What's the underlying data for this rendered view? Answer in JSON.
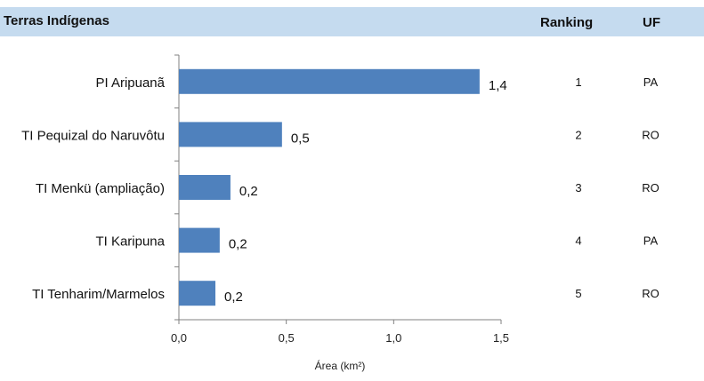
{
  "header": {
    "title": "Terras Indígenas",
    "ranking_label": "Ranking",
    "uf_label": "UF"
  },
  "chart_data": {
    "type": "bar",
    "orientation": "horizontal",
    "categories": [
      "PI Aripuanã",
      "TI Pequizal do Naruvôtu",
      "TI Menkü (ampliação)",
      "TI Karipuna",
      "TI Tenharim/Marmelos"
    ],
    "values": [
      1.4,
      0.48,
      0.24,
      0.19,
      0.17
    ],
    "value_labels": [
      "1,4",
      "0,5",
      "0,2",
      "0,2",
      "0,2"
    ],
    "xlabel": "Área (km²)",
    "ylabel": "",
    "xlim": [
      0,
      1.5
    ],
    "xticks": [
      0,
      0.5,
      1.0,
      1.5
    ],
    "xtick_labels": [
      "0,0",
      "0,5",
      "1,0",
      "1,5"
    ],
    "bar_color": "#4f81bd",
    "grid": false
  },
  "ranking": [
    "1",
    "2",
    "3",
    "4",
    "5"
  ],
  "uf": [
    "PA",
    "RO",
    "RO",
    "PA",
    "RO"
  ],
  "colors": {
    "header_band": "#c5dbef",
    "bar": "#4f81bd",
    "axis": "#808080"
  }
}
